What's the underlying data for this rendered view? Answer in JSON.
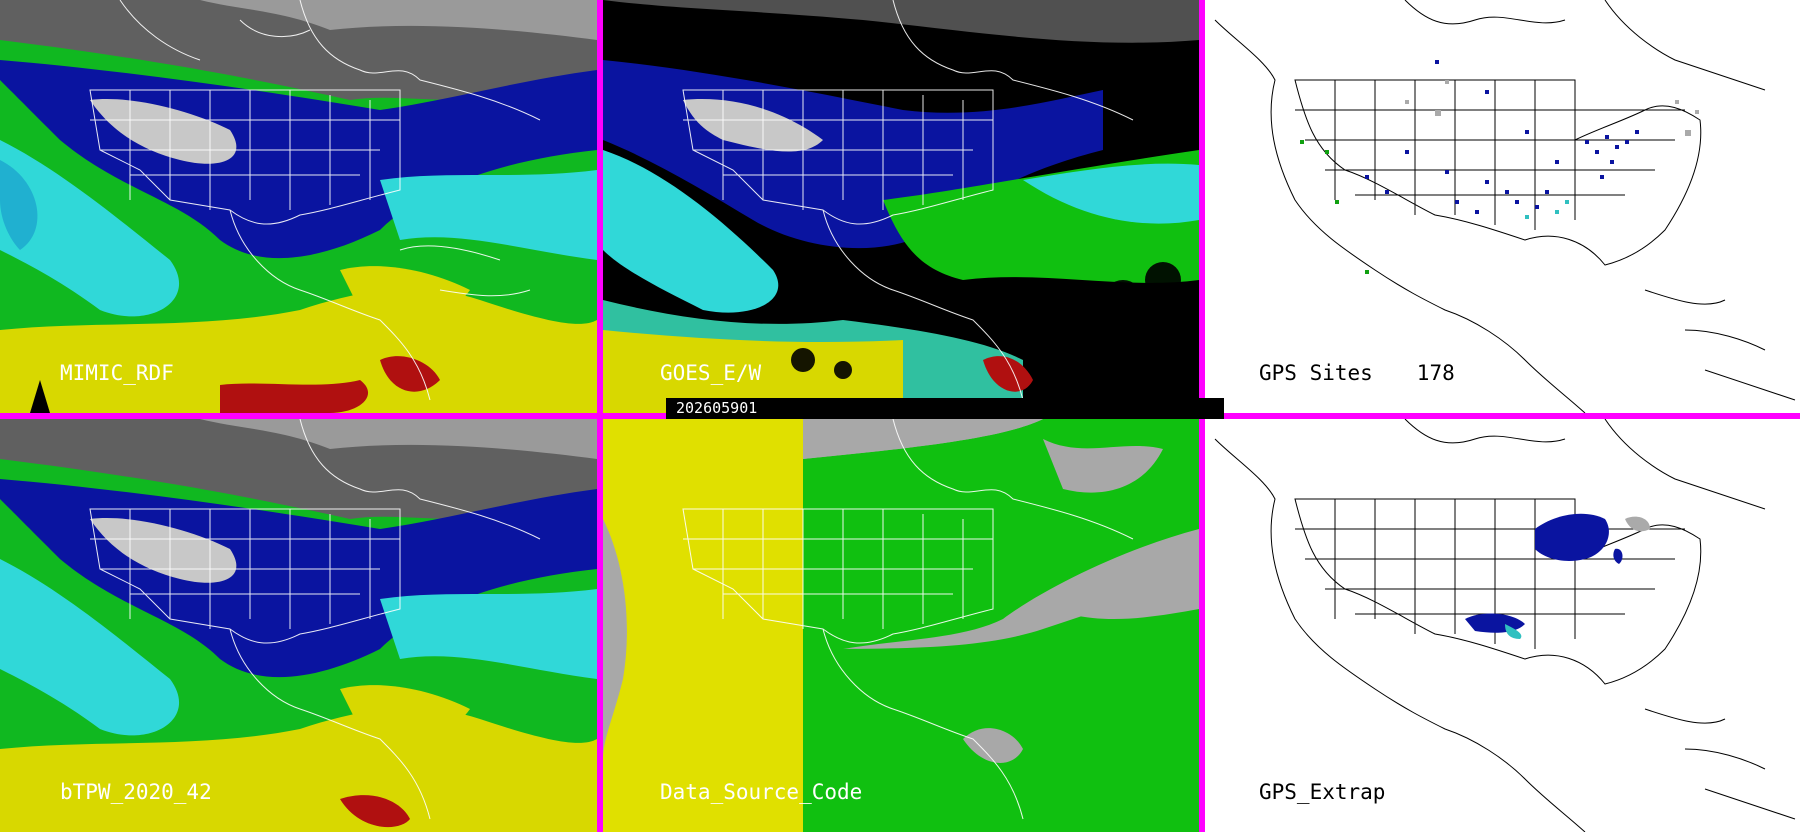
{
  "panels": [
    {
      "id": "p1",
      "label": "MIMIC_RDF",
      "theme": "tpw"
    },
    {
      "id": "p2",
      "label": "GOES_E/W",
      "theme": "goes"
    },
    {
      "id": "p3",
      "label": "GPS Sites",
      "count": "178",
      "theme": "gps"
    },
    {
      "id": "p4",
      "label": "bTPW_2020_42",
      "theme": "tpw"
    },
    {
      "id": "p5",
      "label": "Data_Source_Code",
      "theme": "source"
    },
    {
      "id": "p6",
      "label": "GPS_Extrap",
      "theme": "gps-extrap"
    }
  ],
  "timestamp": "202605901",
  "colors": {
    "frame": "#ff00ff",
    "tpw_dry": "#555555",
    "tpw_mid_blue": "#0a14a0",
    "tpw_cyan": "#30d8d8",
    "tpw_green": "#10c010",
    "tpw_yellow": "#d8d800",
    "tpw_red": "#b01010",
    "source_yellow": "#e0e000",
    "source_green": "#10c010",
    "source_gray": "#a8a8a8",
    "gps_bg": "#ffffff"
  }
}
